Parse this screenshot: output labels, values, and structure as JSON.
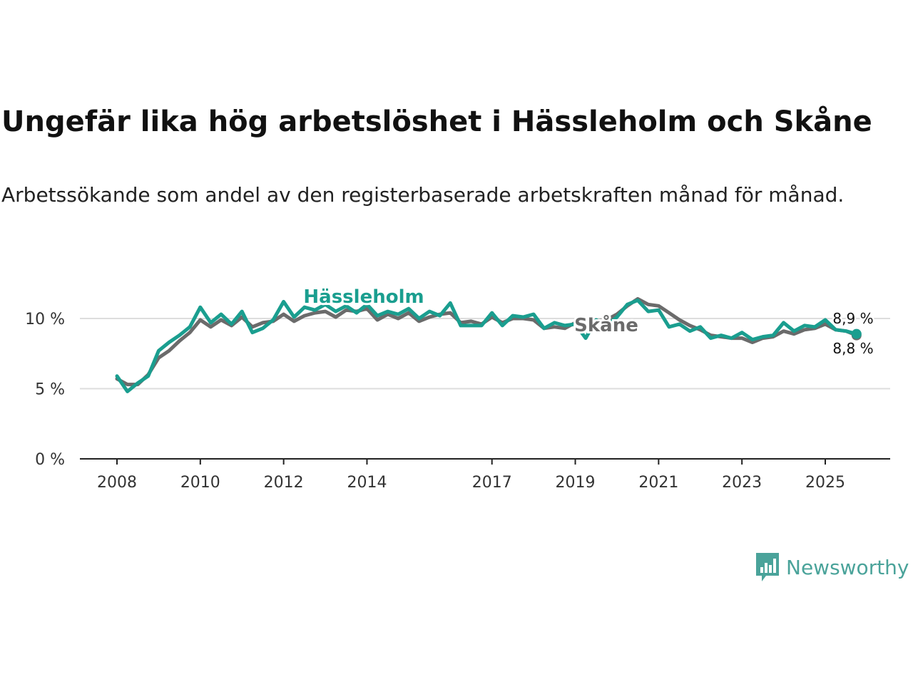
{
  "title": "Ungefär lika hög arbetslöshet i Hässleholm och Skåne",
  "subtitle": "Arbetssökande som andel av den registerbaserade arbetskraften månad för månad.",
  "brand": {
    "name": "Newsworthy",
    "icon": "newsworthy-logo-icon",
    "color": "#4aa39a"
  },
  "chart_data": {
    "type": "line",
    "title": "Ungefär lika hög arbetslöshet i Hässleholm och Skåne",
    "xlabel": "",
    "ylabel": "",
    "ylim": [
      0,
      12
    ],
    "xlim": [
      2008,
      2026.5
    ],
    "grid": true,
    "y_ticks": [
      {
        "value": 0,
        "label": "0 %"
      },
      {
        "value": 5,
        "label": "5 %"
      },
      {
        "value": 10,
        "label": "10 %"
      }
    ],
    "x_ticks": [
      {
        "value": 2008,
        "label": "2008"
      },
      {
        "value": 2010,
        "label": "2010"
      },
      {
        "value": 2012,
        "label": "2012"
      },
      {
        "value": 2014,
        "label": "2014"
      },
      {
        "value": 2017,
        "label": "2017"
      },
      {
        "value": 2019,
        "label": "2019"
      },
      {
        "value": 2021,
        "label": "2021"
      },
      {
        "value": 2023,
        "label": "2023"
      },
      {
        "value": 2025,
        "label": "2025"
      }
    ],
    "series": [
      {
        "name": "Skåne",
        "color": "#6b6b6b",
        "label": "Skåne",
        "end_label": "8,8 %",
        "points": [
          [
            2008.0,
            5.7
          ],
          [
            2008.25,
            5.3
          ],
          [
            2008.5,
            5.3
          ],
          [
            2008.75,
            6.0
          ],
          [
            2009.0,
            7.2
          ],
          [
            2009.25,
            7.7
          ],
          [
            2009.5,
            8.4
          ],
          [
            2009.75,
            9.0
          ],
          [
            2010.0,
            9.9
          ],
          [
            2010.25,
            9.4
          ],
          [
            2010.5,
            9.9
          ],
          [
            2010.75,
            9.5
          ],
          [
            2011.0,
            10.1
          ],
          [
            2011.25,
            9.4
          ],
          [
            2011.5,
            9.7
          ],
          [
            2011.75,
            9.8
          ],
          [
            2012.0,
            10.3
          ],
          [
            2012.25,
            9.8
          ],
          [
            2012.5,
            10.2
          ],
          [
            2012.75,
            10.4
          ],
          [
            2013.0,
            10.5
          ],
          [
            2013.25,
            10.1
          ],
          [
            2013.5,
            10.6
          ],
          [
            2013.75,
            10.5
          ],
          [
            2014.0,
            10.7
          ],
          [
            2014.25,
            9.9
          ],
          [
            2014.5,
            10.3
          ],
          [
            2014.75,
            10.0
          ],
          [
            2015.0,
            10.4
          ],
          [
            2015.25,
            9.8
          ],
          [
            2015.5,
            10.1
          ],
          [
            2015.75,
            10.3
          ],
          [
            2016.0,
            10.4
          ],
          [
            2016.25,
            9.7
          ],
          [
            2016.5,
            9.8
          ],
          [
            2016.75,
            9.6
          ],
          [
            2017.0,
            10.1
          ],
          [
            2017.25,
            9.7
          ],
          [
            2017.5,
            10.0
          ],
          [
            2017.75,
            10.0
          ],
          [
            2018.0,
            9.9
          ],
          [
            2018.25,
            9.3
          ],
          [
            2018.5,
            9.4
          ],
          [
            2018.75,
            9.3
          ],
          [
            2019.0,
            9.7
          ],
          [
            2019.25,
            9.6
          ],
          [
            2019.5,
            9.8
          ],
          [
            2019.75,
            9.9
          ],
          [
            2020.0,
            10.3
          ],
          [
            2020.25,
            10.9
          ],
          [
            2020.5,
            11.4
          ],
          [
            2020.75,
            11.0
          ],
          [
            2021.0,
            10.9
          ],
          [
            2021.25,
            10.4
          ],
          [
            2021.5,
            9.9
          ],
          [
            2021.75,
            9.5
          ],
          [
            2022.0,
            9.2
          ],
          [
            2022.25,
            8.8
          ],
          [
            2022.5,
            8.7
          ],
          [
            2022.75,
            8.6
          ],
          [
            2023.0,
            8.6
          ],
          [
            2023.25,
            8.3
          ],
          [
            2023.5,
            8.6
          ],
          [
            2023.75,
            8.7
          ],
          [
            2024.0,
            9.1
          ],
          [
            2024.25,
            8.9
          ],
          [
            2024.5,
            9.2
          ],
          [
            2024.75,
            9.3
          ],
          [
            2025.0,
            9.6
          ],
          [
            2025.25,
            9.2
          ],
          [
            2025.5,
            9.1
          ],
          [
            2025.75,
            8.8
          ]
        ]
      },
      {
        "name": "Hässleholm",
        "color": "#1a9e8f",
        "label": "Hässleholm",
        "end_label": "8,9 %",
        "points": [
          [
            2008.0,
            5.9
          ],
          [
            2008.25,
            4.8
          ],
          [
            2008.5,
            5.4
          ],
          [
            2008.75,
            5.9
          ],
          [
            2009.0,
            7.7
          ],
          [
            2009.25,
            8.3
          ],
          [
            2009.5,
            8.8
          ],
          [
            2009.75,
            9.4
          ],
          [
            2010.0,
            10.8
          ],
          [
            2010.25,
            9.7
          ],
          [
            2010.5,
            10.3
          ],
          [
            2010.75,
            9.6
          ],
          [
            2011.0,
            10.5
          ],
          [
            2011.25,
            9.0
          ],
          [
            2011.5,
            9.3
          ],
          [
            2011.75,
            9.9
          ],
          [
            2012.0,
            11.2
          ],
          [
            2012.25,
            10.1
          ],
          [
            2012.5,
            10.8
          ],
          [
            2012.75,
            10.6
          ],
          [
            2013.0,
            11.0
          ],
          [
            2013.25,
            10.5
          ],
          [
            2013.5,
            10.9
          ],
          [
            2013.75,
            10.4
          ],
          [
            2014.0,
            11.0
          ],
          [
            2014.25,
            10.2
          ],
          [
            2014.5,
            10.5
          ],
          [
            2014.75,
            10.3
          ],
          [
            2015.0,
            10.7
          ],
          [
            2015.25,
            10.0
          ],
          [
            2015.5,
            10.5
          ],
          [
            2015.75,
            10.2
          ],
          [
            2016.0,
            11.1
          ],
          [
            2016.25,
            9.5
          ],
          [
            2016.5,
            9.5
          ],
          [
            2016.75,
            9.5
          ],
          [
            2017.0,
            10.4
          ],
          [
            2017.25,
            9.5
          ],
          [
            2017.5,
            10.2
          ],
          [
            2017.75,
            10.1
          ],
          [
            2018.0,
            10.3
          ],
          [
            2018.25,
            9.3
          ],
          [
            2018.5,
            9.7
          ],
          [
            2018.75,
            9.5
          ],
          [
            2019.0,
            9.6
          ],
          [
            2019.25,
            8.6
          ],
          [
            2019.5,
            9.9
          ],
          [
            2019.75,
            9.5
          ],
          [
            2020.0,
            10.1
          ],
          [
            2020.25,
            11.0
          ],
          [
            2020.5,
            11.3
          ],
          [
            2020.75,
            10.5
          ],
          [
            2021.0,
            10.6
          ],
          [
            2021.25,
            9.4
          ],
          [
            2021.5,
            9.6
          ],
          [
            2021.75,
            9.1
          ],
          [
            2022.0,
            9.4
          ],
          [
            2022.25,
            8.6
          ],
          [
            2022.5,
            8.8
          ],
          [
            2022.75,
            8.6
          ],
          [
            2023.0,
            9.0
          ],
          [
            2023.25,
            8.5
          ],
          [
            2023.5,
            8.7
          ],
          [
            2023.75,
            8.8
          ],
          [
            2024.0,
            9.7
          ],
          [
            2024.25,
            9.1
          ],
          [
            2024.5,
            9.5
          ],
          [
            2024.75,
            9.4
          ],
          [
            2025.0,
            9.9
          ],
          [
            2025.25,
            9.2
          ],
          [
            2025.5,
            9.1
          ],
          [
            2025.75,
            8.9
          ]
        ]
      }
    ]
  }
}
